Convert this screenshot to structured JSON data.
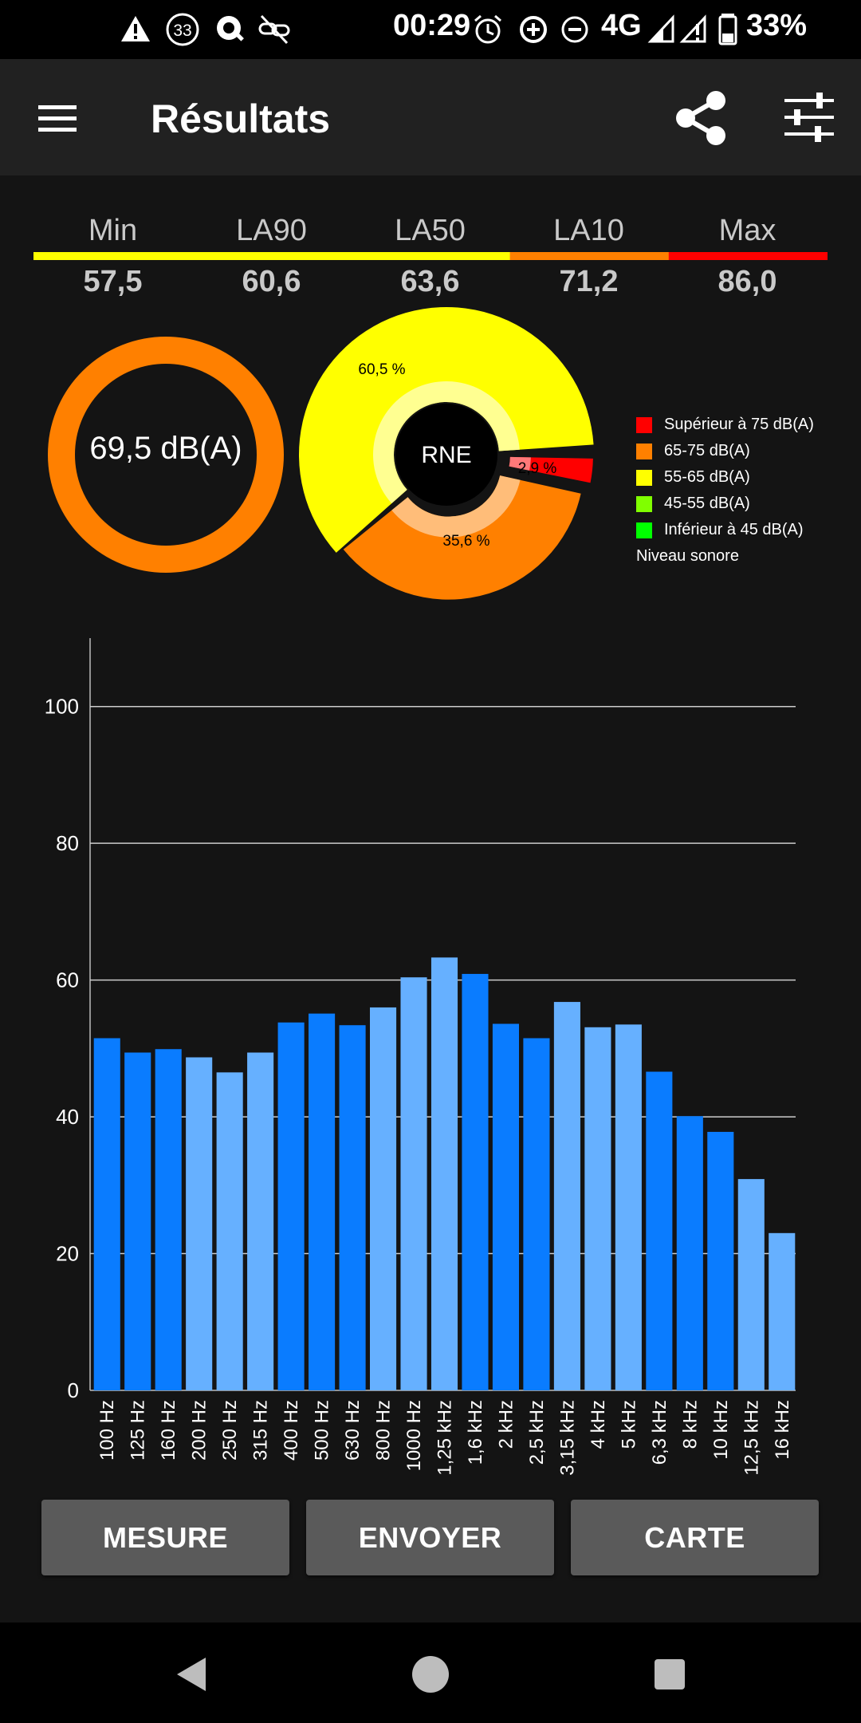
{
  "status_bar": {
    "time": "00:29",
    "network": "4G",
    "battery": "33%",
    "notification_badge": "33",
    "icons": [
      "warning-icon",
      "badge-33-icon",
      "search-app-icon",
      "link-off-icon",
      "alarm-icon",
      "data-saver-icon",
      "do-not-disturb-icon",
      "signal-icon",
      "signal-alert-icon",
      "battery-icon"
    ]
  },
  "app_bar": {
    "title": "Résultats",
    "menu_icon": "hamburger-menu-icon",
    "share_icon": "share-icon",
    "settings_icon": "tune-sliders-icon"
  },
  "stats": {
    "items": [
      {
        "label": "Min",
        "value": "57,5",
        "color": "#ffff00"
      },
      {
        "label": "LA90",
        "value": "60,6",
        "color": "#ffff00"
      },
      {
        "label": "LA50",
        "value": "63,6",
        "color": "#ffff00"
      },
      {
        "label": "LA10",
        "value": "71,2",
        "color": "#ff8000"
      },
      {
        "label": "Max",
        "value": "86,0",
        "color": "#ff0000"
      }
    ]
  },
  "level_donut": {
    "label": "69,5 dB(A)",
    "color": "#ff8000"
  },
  "rne_pie": {
    "center_label": "RNE",
    "slices": [
      {
        "percent": 60.5,
        "label": "60,5 %",
        "color": "#ffff00"
      },
      {
        "percent": 35.6,
        "label": "35,6 %",
        "color": "#ff8000"
      },
      {
        "percent": 2.9,
        "label": "2,9 %",
        "color": "#ff0000"
      }
    ]
  },
  "legend": {
    "items": [
      {
        "label": "Supérieur à 75 dB(A)",
        "color": "#ff0000"
      },
      {
        "label": "65-75 dB(A)",
        "color": "#ff8000"
      },
      {
        "label": "55-65 dB(A)",
        "color": "#ffff00"
      },
      {
        "label": "45-55 dB(A)",
        "color": "#80ff00"
      },
      {
        "label": "Inférieur à 45 dB(A)",
        "color": "#00ff00"
      }
    ],
    "footer": "Niveau sonore"
  },
  "chart_data": {
    "type": "bar",
    "categories": [
      "100 Hz",
      "125 Hz",
      "160 Hz",
      "200 Hz",
      "250 Hz",
      "315 Hz",
      "400 Hz",
      "500 Hz",
      "630 Hz",
      "800 Hz",
      "1000 Hz",
      "1,25 kHz",
      "1,6 kHz",
      "2 kHz",
      "2,5 kHz",
      "3,15 kHz",
      "4 kHz",
      "5 kHz",
      "6,3 kHz",
      "8 kHz",
      "10 kHz",
      "12,5 kHz",
      "16 kHz"
    ],
    "values": [
      51.5,
      49.4,
      49.9,
      48.7,
      46.5,
      49.4,
      53.8,
      55.1,
      53.4,
      56.0,
      60.4,
      63.3,
      60.9,
      53.6,
      51.5,
      56.8,
      53.1,
      53.5,
      46.6,
      40.1,
      37.8,
      30.9,
      23.0
    ],
    "bar_colors": [
      "#0a7cff",
      "#0a7cff",
      "#0a7cff",
      "#66b0ff",
      "#66b0ff",
      "#66b0ff",
      "#0a7cff",
      "#0a7cff",
      "#0a7cff",
      "#66b0ff",
      "#66b0ff",
      "#66b0ff",
      "#0a7cff",
      "#0a7cff",
      "#0a7cff",
      "#66b0ff",
      "#66b0ff",
      "#66b0ff",
      "#0a7cff",
      "#0a7cff",
      "#0a7cff",
      "#66b0ff",
      "#66b0ff"
    ],
    "yticks": [
      0,
      20,
      40,
      60,
      80,
      100
    ],
    "ylim": [
      0,
      110
    ],
    "grid": true,
    "title": "",
    "xlabel": "",
    "ylabel": ""
  },
  "buttons": {
    "measure": "MESURE",
    "send": "ENVOYER",
    "map": "CARTE"
  },
  "nav_bar": {
    "icons": [
      "back-icon",
      "home-icon",
      "recents-icon"
    ]
  }
}
